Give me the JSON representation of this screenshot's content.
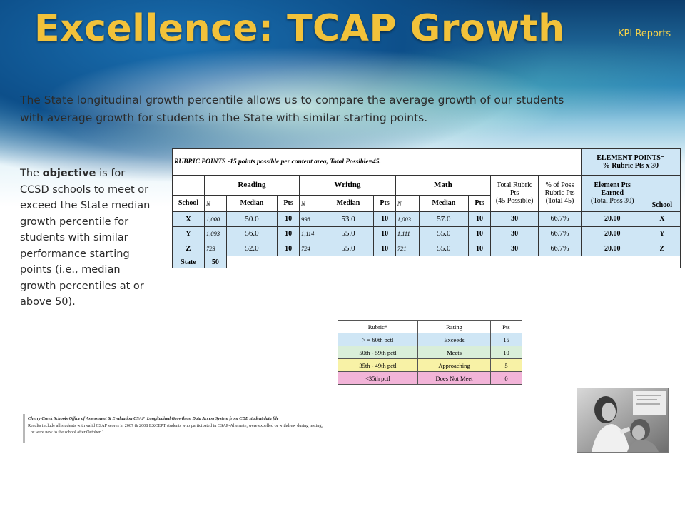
{
  "slide": {
    "title": "Excellence: TCAP Growth",
    "tag": "KPI Reports",
    "intro": "The State longitudinal growth percentile allows us to compare the average growth of our students with average growth for students in the State with similar starting points.",
    "objective": {
      "pre": "The ",
      "bold": "objective",
      "post": " is for CCSD schools to meet or exceed the State median growth percentile for students with similar performance starting points (i.e., median growth percentiles at or above 50)."
    }
  },
  "main_table": {
    "rubric_header": "RUBRIC POINTS -15 points possible per content area, Total Possible=45.",
    "element_header_line1": "ELEMENT POINTS=",
    "element_header_line2": "% Rubric Pts x 30",
    "groups": [
      "Reading",
      "Writing",
      "Math"
    ],
    "total_rubric_line1": "Total Rubric",
    "total_rubric_line2": "Pts",
    "total_rubric_line3": "(45 Possible)",
    "pct_poss_line1": "% of Poss",
    "pct_poss_line2": "Rubric Pts",
    "pct_poss_line3": "(Total 45)",
    "element_pts_line1": "Element Pts",
    "element_pts_line2": "Earned",
    "element_pts_line3": "(Total Poss 30)",
    "col_school": "School",
    "col_n": "N",
    "col_median": "Median",
    "col_pts": "Pts",
    "col_school_right": "School",
    "rows": [
      {
        "school": "X",
        "r_n": "1,000",
        "r_med": "50.0",
        "r_pts": "10",
        "w_n": "998",
        "w_med": "53.0",
        "w_pts": "10",
        "m_n": "1,003",
        "m_med": "57.0",
        "m_pts": "10",
        "total": "30",
        "pct": "66.7%",
        "elem": "20.00",
        "school2": "X"
      },
      {
        "school": "Y",
        "r_n": "1,093",
        "r_med": "56.0",
        "r_pts": "10",
        "w_n": "1,114",
        "w_med": "55.0",
        "w_pts": "10",
        "m_n": "1,111",
        "m_med": "55.0",
        "m_pts": "10",
        "total": "30",
        "pct": "66.7%",
        "elem": "20.00",
        "school2": "Y"
      },
      {
        "school": "Z",
        "r_n": "723",
        "r_med": "52.0",
        "r_pts": "10",
        "w_n": "724",
        "w_med": "55.0",
        "w_pts": "10",
        "m_n": "721",
        "m_med": "55.0",
        "m_pts": "10",
        "total": "30",
        "pct": "66.7%",
        "elem": "20.00",
        "school2": "Z"
      }
    ],
    "state_label": "State",
    "state_value": "50"
  },
  "legend_table": {
    "headers": [
      "Rubric*",
      "Rating",
      "Pts"
    ],
    "rows": [
      [
        "> = 60th pctl",
        "Exceeds",
        "15"
      ],
      [
        "50th - 59th pctl",
        "Meets",
        "10"
      ],
      [
        "35th - 49th pctl",
        "Approaching",
        "5"
      ],
      [
        "<35th pctl",
        "Does Not Meet",
        "0"
      ]
    ]
  },
  "footnote": {
    "source": "Cherry Creek Schools Office of Assessment & Evaluation CSAP_Longitudinal Growth on Data Access System from CDE student data file",
    "line2": "Results include all students with valid CSAP scores in 2007 & 2008 EXCEPT students who participated in CSAP-Alternate, were expelled or withdrew during testing,",
    "line3": "or were new to the school after October 1."
  },
  "colors": {
    "title": "#f2c23a",
    "tag": "#f4d24a",
    "blue_shade": "#cfe6f5",
    "green_shade": "#d9eed9",
    "yellow_shade": "#f8f2a6",
    "pink_shade": "#f2b4d8"
  }
}
